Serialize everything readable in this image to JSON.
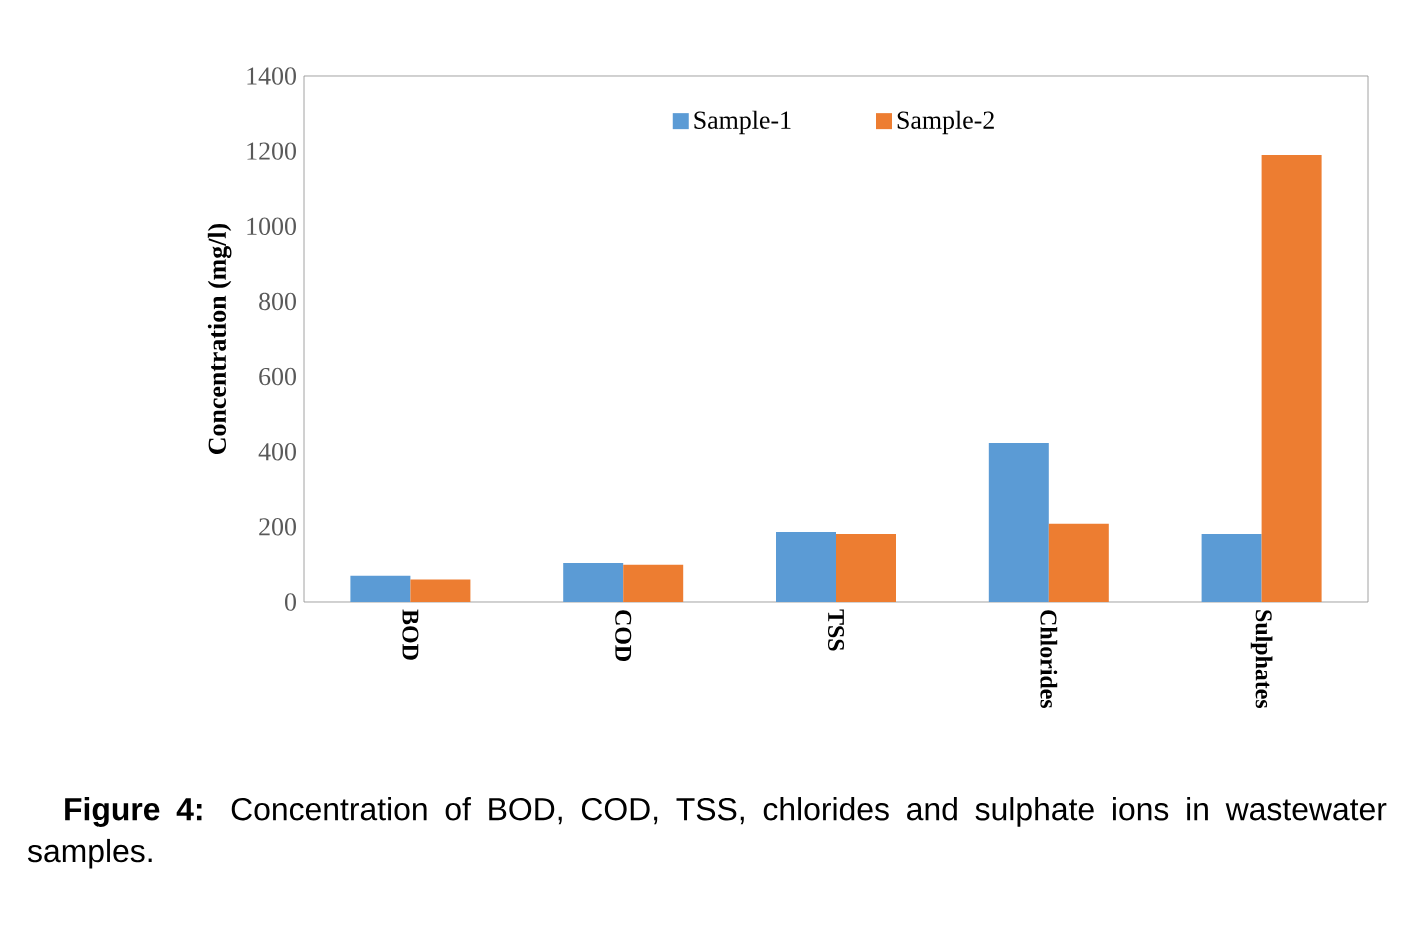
{
  "chart_data": {
    "type": "bar",
    "ylabel": "Concentration  (mg/l)",
    "categories": [
      "BOD",
      "COD",
      "TSS",
      "Chlorides",
      "Sulphates"
    ],
    "series": [
      {
        "name": "Sample-1",
        "color": "#5b9bd5",
        "values": [
          70,
          104,
          186,
          423,
          181
        ]
      },
      {
        "name": "Sample-2",
        "color": "#ed7d31",
        "values": [
          60,
          99,
          181,
          208,
          1190
        ]
      }
    ],
    "ylim": [
      0,
      1400
    ],
    "yticks": [
      0,
      200,
      400,
      600,
      800,
      1000,
      1200,
      1400
    ],
    "legend": "top",
    "annotations": [
      "**Figure 4:** Concentration of BOD, COD, TSS, chlorides and sulphate ions in wastewater samples."
    ]
  }
}
